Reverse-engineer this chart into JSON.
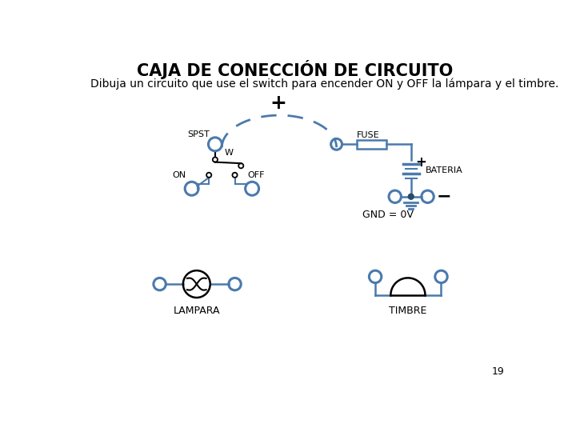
{
  "title": "CAJA DE CONECCIÓN DE CIRCUITO",
  "subtitle": "Dibuja un circuito que use el switch para encender ON y OFF la lámpara y el timbre.",
  "title_fontsize": 15,
  "subtitle_fontsize": 10,
  "bg_color": "#ffffff",
  "line_color": "#4a7aad",
  "dark_color": "#2a4a6a",
  "text_color": "#000000",
  "page_number": "19"
}
